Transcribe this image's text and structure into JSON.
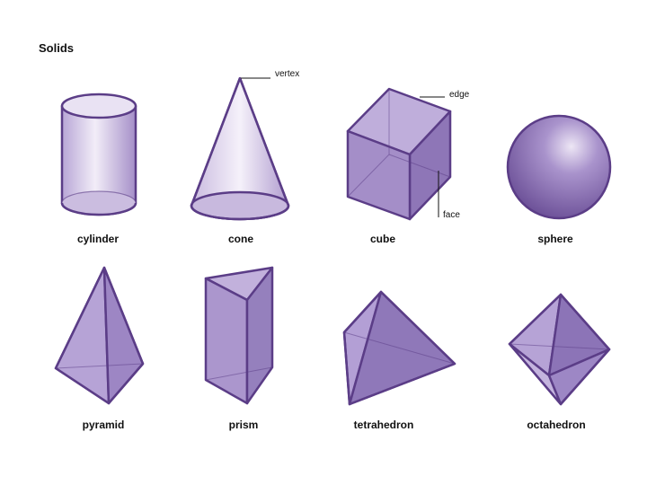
{
  "title": "Solids",
  "solids": [
    {
      "name": "cylinder"
    },
    {
      "name": "cone"
    },
    {
      "name": "cube"
    },
    {
      "name": "sphere"
    },
    {
      "name": "pyramid"
    },
    {
      "name": "prism"
    },
    {
      "name": "tetrahedron"
    },
    {
      "name": "octahedron"
    }
  ],
  "callouts": {
    "vertex": "vertex",
    "edge": "edge",
    "face": "face"
  },
  "colors": {
    "stroke": "#5b3d87",
    "face_light": "#d8cce8",
    "face_mid": "#a893c9",
    "face_dark": "#7d63a6"
  }
}
